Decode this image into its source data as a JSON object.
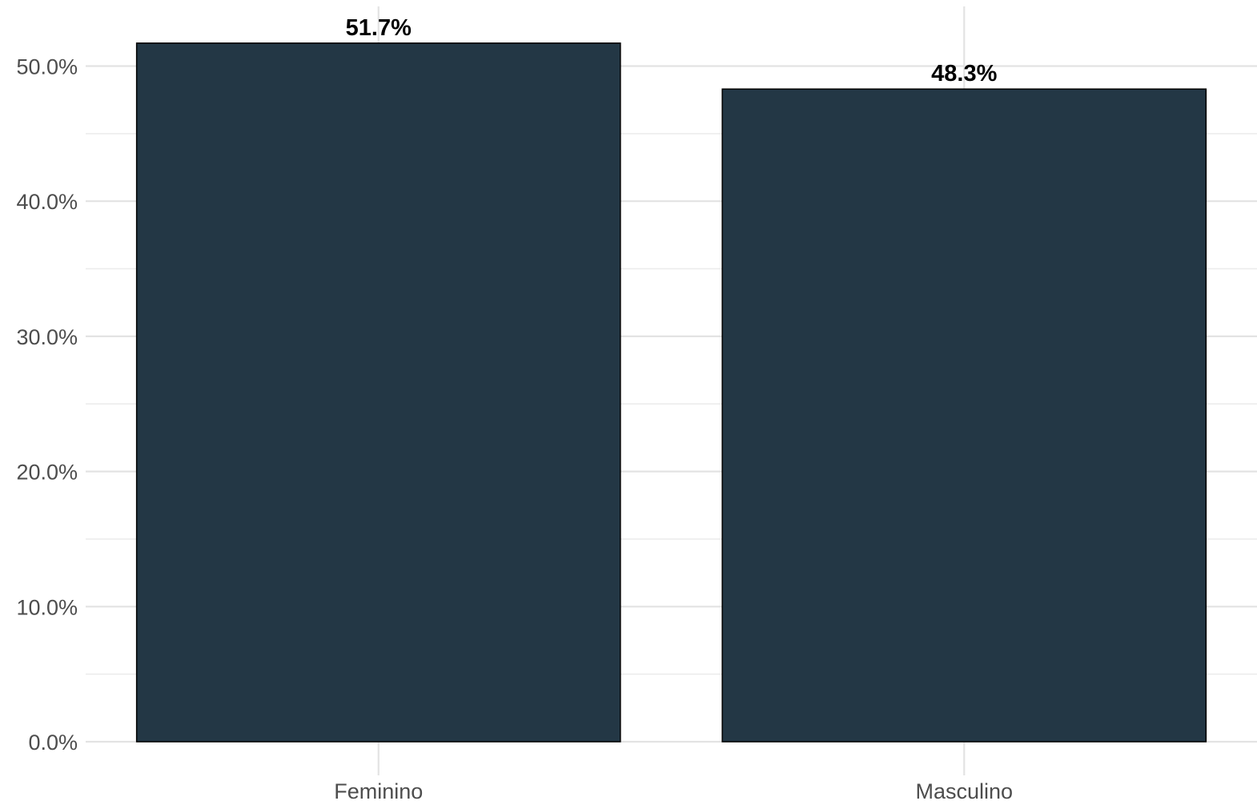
{
  "chart_data": {
    "type": "bar",
    "categories": [
      "Feminino",
      "Masculino"
    ],
    "values": [
      51.7,
      48.3
    ],
    "value_labels": [
      "51.7%",
      "48.3%"
    ],
    "title": "",
    "xlabel": "",
    "ylabel": "",
    "ylim": [
      0,
      52
    ],
    "y_ticks": [
      0,
      10,
      20,
      30,
      40,
      50
    ],
    "y_tick_labels": [
      "0.0%",
      "10.0%",
      "20.0%",
      "30.0%",
      "40.0%",
      "50.0%"
    ],
    "grid": true,
    "legend": "none",
    "bar_color": "#233745",
    "bar_outline_color": "#000000"
  }
}
